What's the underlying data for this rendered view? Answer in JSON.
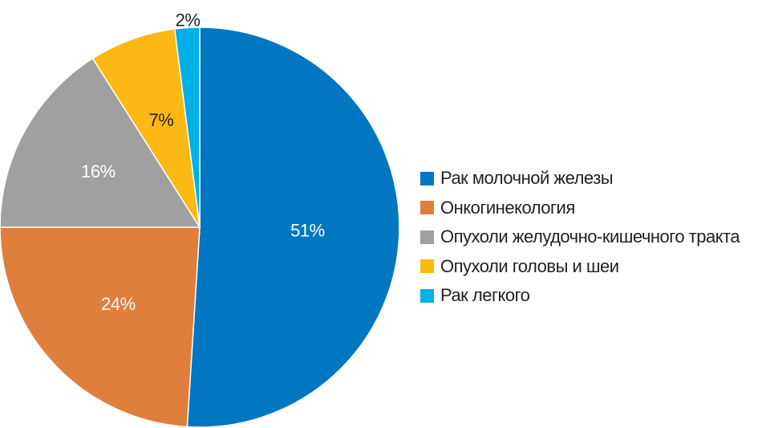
{
  "chart_data": {
    "type": "pie",
    "title": "",
    "start": "top",
    "direction": "clockwise",
    "legend_position": "right",
    "slices": [
      {
        "name": "Рак молочной железы",
        "value": 51,
        "label": "51%",
        "color": "#0077c0",
        "label_color": "#ffffff"
      },
      {
        "name": "Онкогинекология",
        "value": 24,
        "label": "24%",
        "color": "#e07e3c",
        "label_color": "#ffffff"
      },
      {
        "name": "Опухоли желудочно-кишечного тракта",
        "value": 16,
        "label": "16%",
        "color": "#a0a0a0",
        "label_color": "#ffffff"
      },
      {
        "name": "Опухоли головы и шеи",
        "value": 7,
        "label": "7%",
        "color": "#fcb813",
        "label_color": "#231f20"
      },
      {
        "name": "Рак легкого",
        "value": 2,
        "label": "2%",
        "color": "#00b0e6",
        "label_color": "#231f20"
      }
    ]
  }
}
